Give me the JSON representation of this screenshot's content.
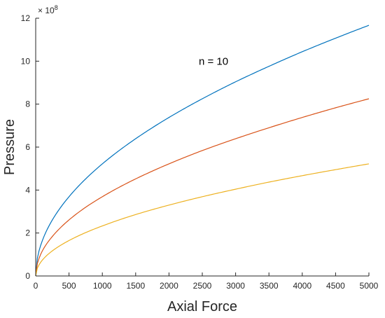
{
  "chart_data": {
    "type": "line",
    "title": "",
    "xlabel": "Axial Force",
    "ylabel": "Pressure",
    "xlim": [
      0,
      5000
    ],
    "ylim": [
      0,
      12
    ],
    "y_exponent_base": "× 10",
    "y_exponent_power": "8",
    "xticks": [
      0,
      500,
      1000,
      1500,
      2000,
      2500,
      3000,
      3500,
      4000,
      4500,
      5000
    ],
    "yticks": [
      0,
      2,
      4,
      6,
      8,
      10,
      12
    ],
    "annotation": {
      "text": "n = 10",
      "x": 2500,
      "y": 10.0
    },
    "grid": false,
    "x": [
      0,
      10,
      50,
      100,
      250,
      500,
      750,
      1000,
      1500,
      2000,
      2500,
      3000,
      3500,
      4000,
      4500,
      5000
    ],
    "series": [
      {
        "color": "#0072BD",
        "values": [
          0,
          0.52,
          1.17,
          1.65,
          2.61,
          3.69,
          4.52,
          5.22,
          6.39,
          7.38,
          8.25,
          9.04,
          9.76,
          10.44,
          11.07,
          11.67
        ]
      },
      {
        "color": "#D95319",
        "values": [
          0,
          0.37,
          0.82,
          1.17,
          1.84,
          2.61,
          3.2,
          3.69,
          4.52,
          5.22,
          5.84,
          6.39,
          6.9,
          7.38,
          7.83,
          8.25
        ]
      },
      {
        "color": "#EDB120",
        "values": [
          0,
          0.23,
          0.52,
          0.74,
          1.17,
          1.65,
          2.02,
          2.33,
          2.86,
          3.3,
          3.69,
          4.04,
          4.37,
          4.67,
          4.95,
          5.22
        ]
      }
    ]
  }
}
